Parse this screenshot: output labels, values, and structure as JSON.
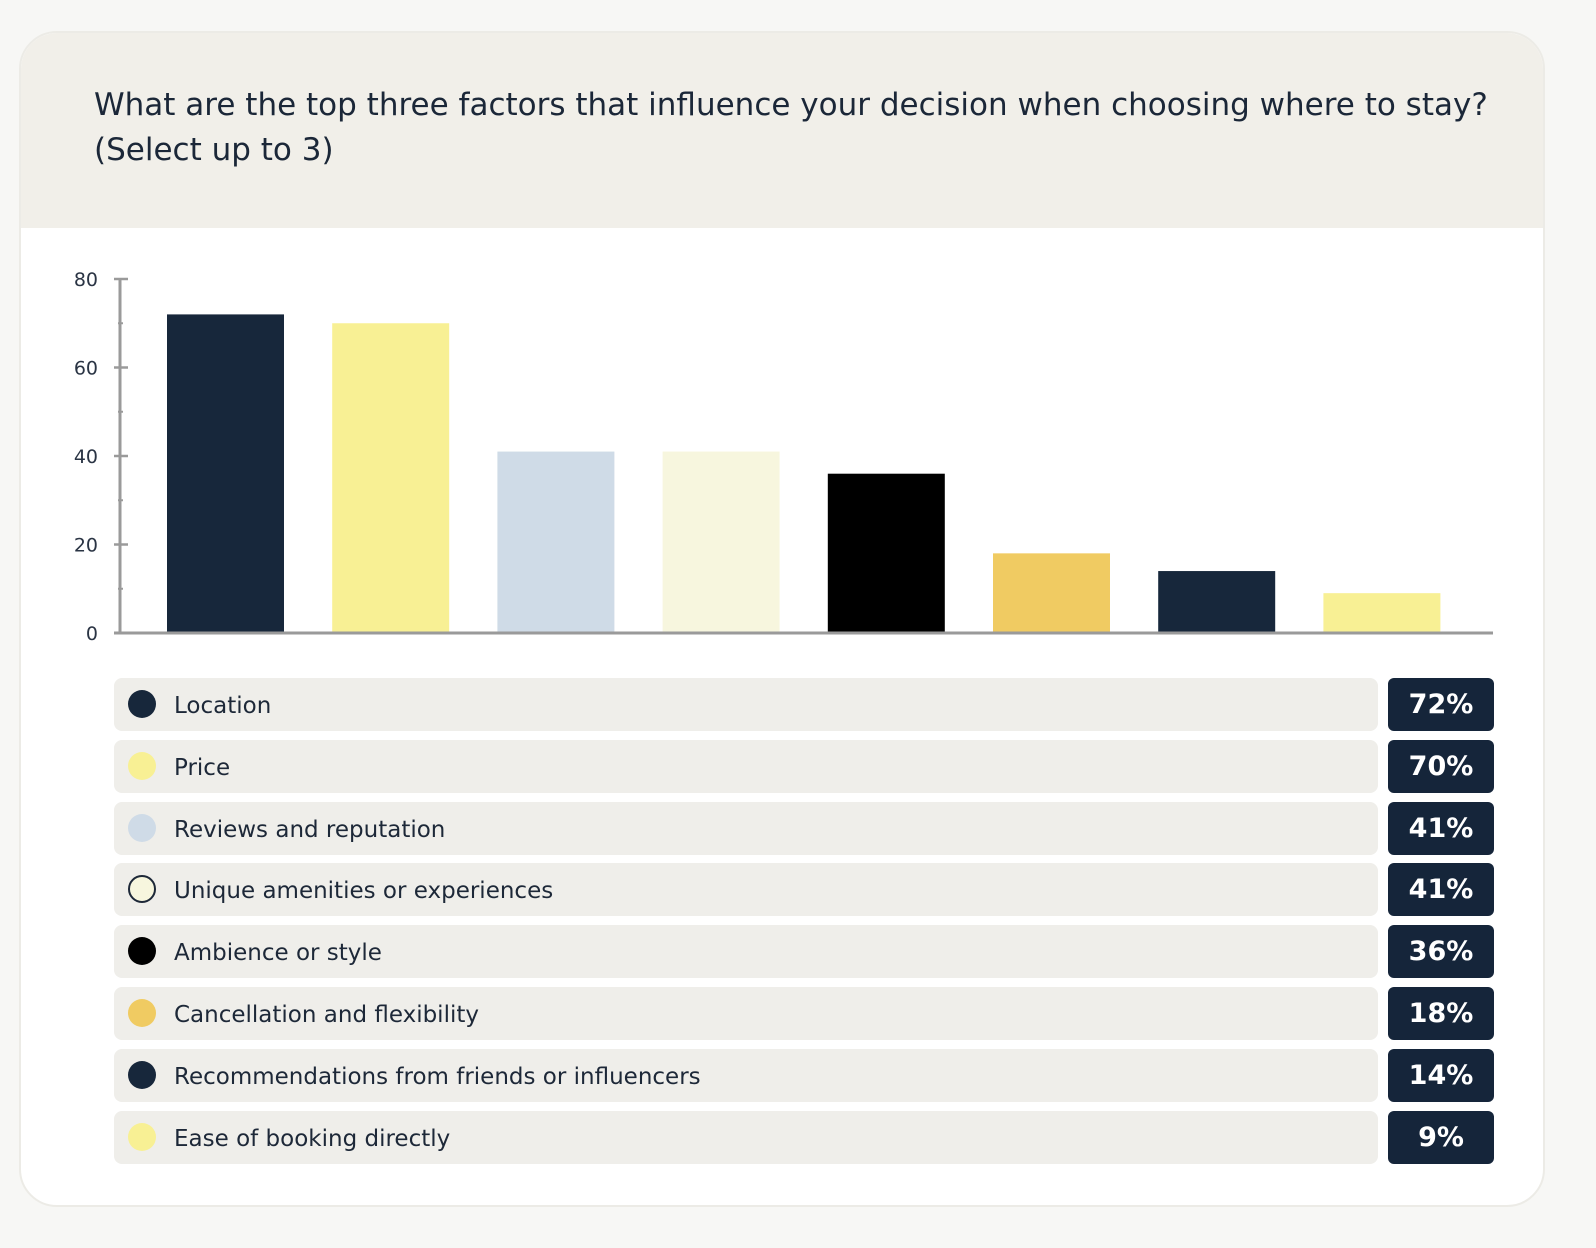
{
  "question": "What are the top three factors that influence your decision when choosing where to stay? (Select up to 3)",
  "chart_data": {
    "type": "bar",
    "title": "What are the top three factors that influence your decision when choosing where to stay? (Select up to 3)",
    "categories": [
      "Location",
      "Price",
      "Reviews and reputation",
      "Unique amenities or experiences",
      "Ambience or style",
      "Cancellation and flexibility",
      "Recommendations from friends or influencers",
      "Ease of booking directly"
    ],
    "values": [
      72,
      70,
      41,
      41,
      36,
      18,
      14,
      9
    ],
    "value_labels": [
      "72%",
      "70%",
      "41%",
      "41%",
      "36%",
      "18%",
      "14%",
      "9%"
    ],
    "colors": [
      "#17273b",
      "#f8f094",
      "#cfdbe7",
      "#f7f6de",
      "#000000",
      "#f0cb62",
      "#17273b",
      "#f8f094"
    ],
    "yticks": [
      "0",
      "20",
      "40",
      "60",
      "80"
    ],
    "ylim": [
      0,
      80
    ],
    "grid": false,
    "legend_position": "bottom"
  }
}
